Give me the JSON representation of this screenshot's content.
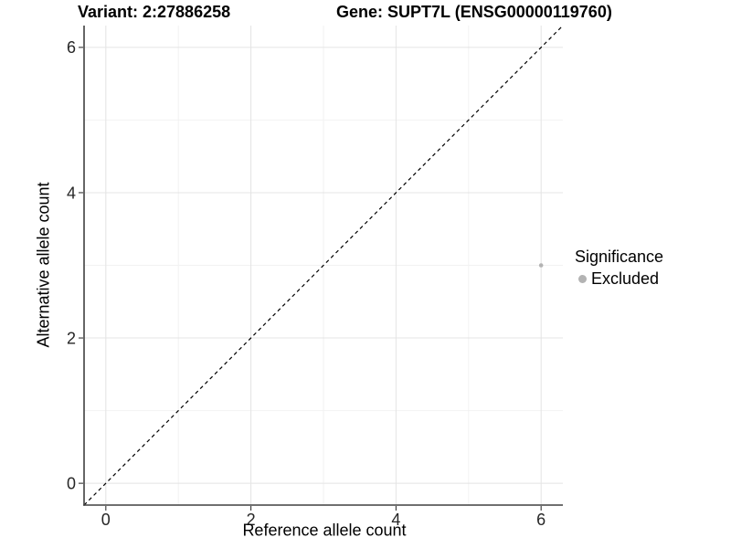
{
  "chart_data": {
    "type": "scatter",
    "title_left": "Variant: 2:27886258",
    "title_right": "Gene: SUPT7L (ENSG00000119760)",
    "xlabel": "Reference allele count",
    "ylabel": "Alternative allele count",
    "xlim": [
      -0.3,
      6.3
    ],
    "ylim": [
      -0.3,
      6.3
    ],
    "x_ticks": [
      0,
      2,
      4,
      6
    ],
    "y_ticks": [
      0,
      2,
      4,
      6
    ],
    "x_minor_ticks": [
      1,
      3,
      5
    ],
    "y_minor_ticks": [
      1,
      3,
      5
    ],
    "grid": "major and minor, light gray on white background",
    "reference_line": {
      "type": "abline",
      "slope": 1,
      "intercept": 0,
      "linetype": "dashed",
      "color": "#000000"
    },
    "series": [
      {
        "name": "Excluded",
        "color": "#b3b3b3",
        "marker": "circle",
        "points": [
          {
            "x": 6,
            "y": 3
          }
        ]
      }
    ],
    "legend": {
      "title": "Significance",
      "position": "right",
      "entries": [
        {
          "label": "Excluded",
          "color": "#b3b3b3"
        }
      ]
    }
  },
  "colors": {
    "background": "#ffffff",
    "grid_major": "#e4e4e4",
    "grid_minor": "#f2f2f2",
    "axis_line": "#404040",
    "tick_mark": "#333333",
    "tick_label": "#262626",
    "point": "#b3b3b3",
    "reference_line": "#000000"
  }
}
